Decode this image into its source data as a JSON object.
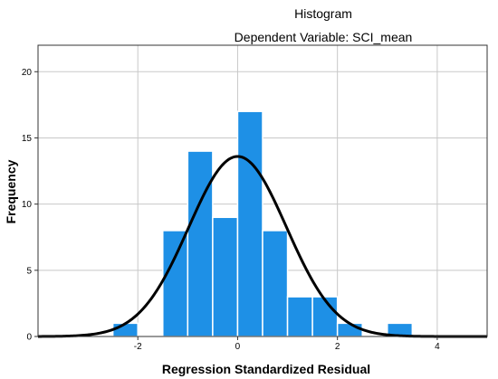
{
  "chart_data": {
    "type": "bar",
    "title": "Histogram",
    "subtitle": "Dependent Variable: SCI_mean",
    "xlabel": "Regression Standardized Residual",
    "ylabel": "Frequency",
    "xlim": [
      -4,
      5
    ],
    "ylim": [
      0,
      22
    ],
    "x_ticks": [
      -2,
      0,
      2,
      4
    ],
    "y_ticks": [
      0,
      5,
      10,
      15,
      20
    ],
    "bins": [
      {
        "start": -2.5,
        "end": -2.0,
        "count": 1
      },
      {
        "start": -1.5,
        "end": -1.0,
        "count": 8
      },
      {
        "start": -1.0,
        "end": -0.5,
        "count": 14
      },
      {
        "start": -0.5,
        "end": 0.0,
        "count": 9
      },
      {
        "start": 0.0,
        "end": 0.5,
        "count": 17
      },
      {
        "start": 0.5,
        "end": 1.0,
        "count": 8
      },
      {
        "start": 1.0,
        "end": 1.5,
        "count": 3
      },
      {
        "start": 1.5,
        "end": 2.0,
        "count": 3
      },
      {
        "start": 2.0,
        "end": 2.5,
        "count": 1
      },
      {
        "start": 3.0,
        "end": 3.5,
        "count": 1
      }
    ],
    "normal_curve": {
      "mean": 0.0,
      "std_dev": 0.98,
      "peak_frequency": 13.6
    },
    "grid": true,
    "bar_color": "#1e90e6",
    "curve_color": "#000000",
    "grid_color": "#c8c8c8"
  }
}
